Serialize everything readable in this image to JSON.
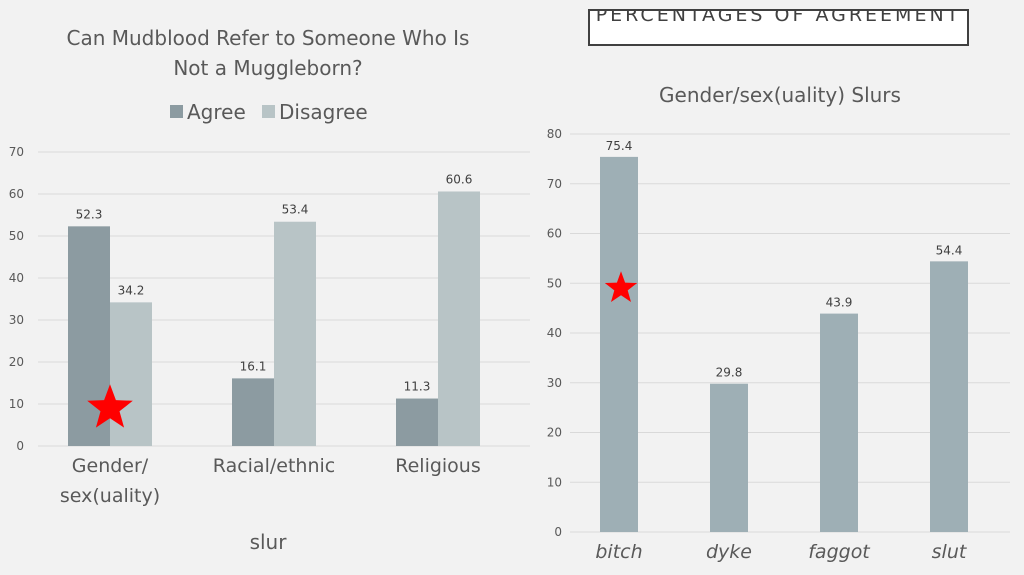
{
  "slide": {
    "title": "PERCENTAGES OF AGREEMENT"
  },
  "colors": {
    "agree": "#8c9ba1",
    "disagree": "#b8c4c6",
    "single": "#9eafb5",
    "marker": "#ff0000",
    "background": "#f2f2f2"
  },
  "chart_data": [
    {
      "type": "bar",
      "title": "Can Mudblood Refer to Someone Who Is Not a Muggleborn?",
      "title_lines": [
        "Can Mudblood Refer to Someone Who Is",
        "Not a Muggleborn?"
      ],
      "categories": [
        "Gender/ sex(uality)",
        "Racial/ethnic",
        "Religious"
      ],
      "category_lines": [
        [
          "Gender/",
          "sex(uality)"
        ],
        [
          "Racial/ethnic"
        ],
        [
          "Religious"
        ]
      ],
      "series": [
        {
          "name": "Agree",
          "values": [
            52.3,
            16.1,
            11.3
          ]
        },
        {
          "name": "Disagree",
          "values": [
            34.2,
            53.4,
            60.6
          ]
        }
      ],
      "xlabel": "slur",
      "ylabel": "",
      "ylim": [
        0,
        70
      ],
      "yticks": [
        0,
        10,
        20,
        30,
        40,
        50,
        60,
        70
      ],
      "grid": true,
      "legend": "top",
      "data_labels": true,
      "annotations": [
        {
          "type": "star",
          "category": "Gender/ sex(uality)",
          "series": "Agree",
          "value": 9
        }
      ]
    },
    {
      "type": "bar",
      "title": "Gender/sex(uality) Slurs",
      "categories": [
        "bitch",
        "dyke",
        "faggot",
        "slut"
      ],
      "values": [
        75.4,
        29.8,
        43.9,
        54.4
      ],
      "xlabel": "",
      "ylabel": "",
      "ylim": [
        0,
        80
      ],
      "yticks": [
        0,
        10,
        20,
        30,
        40,
        50,
        60,
        70,
        80
      ],
      "grid": true,
      "data_labels": true,
      "annotations": [
        {
          "type": "star",
          "category": "bitch",
          "value": 49
        }
      ]
    }
  ]
}
